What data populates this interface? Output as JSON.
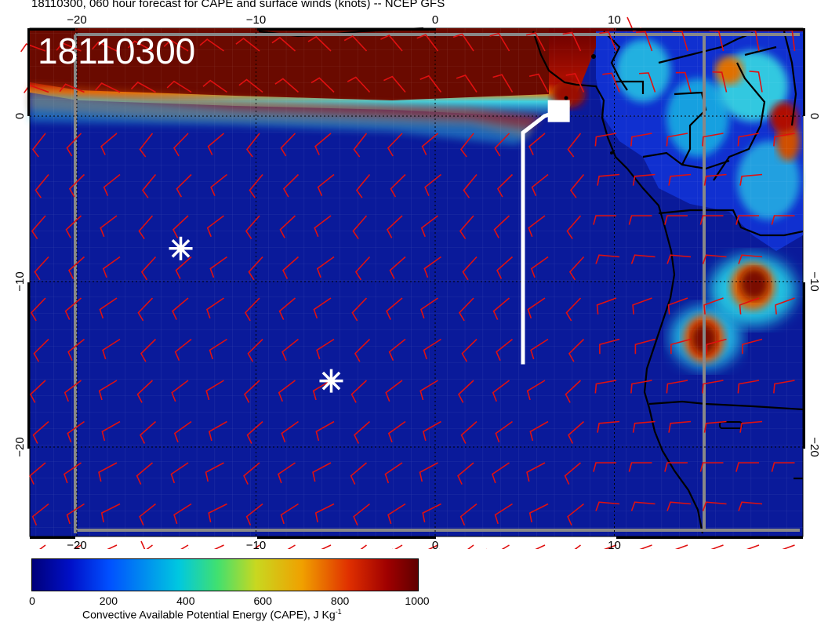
{
  "title": "18110300, 060 hour forecast for CAPE and surface winds (knots) -- NCEP GFS",
  "stamp": "18110300",
  "map": {
    "lon_range": [
      -22.5,
      20.5
    ],
    "lat_range": [
      -25.5,
      5
    ],
    "lon_ticks": [
      {
        "value": -20,
        "label": "−20"
      },
      {
        "value": -10,
        "label": "−10"
      },
      {
        "value": 0,
        "label": "0"
      },
      {
        "value": 10,
        "label": "10"
      }
    ],
    "lat_ticks": [
      {
        "value": 0,
        "label": "0"
      },
      {
        "value": -10,
        "label": "−10"
      },
      {
        "value": -20,
        "label": "−20"
      }
    ],
    "wind_barb_color": "#e01010",
    "ocean_color": "#0a1a9a",
    "high_cape_color": "#7a0a00",
    "land_outline_color": "#000000"
  },
  "markers": [
    {
      "name": "asterisk",
      "lon": -14.2,
      "lat": -8
    },
    {
      "name": "asterisk",
      "lon": -5.8,
      "lat": -16
    }
  ],
  "track": {
    "color": "#ffffff",
    "points": [
      [
        4.9,
        -15
      ],
      [
        4.9,
        -1
      ],
      [
        6.1,
        0
      ],
      [
        6.9,
        0.3
      ]
    ],
    "end_square": [
      6.9,
      0.3
    ]
  },
  "colorbar": {
    "ticks": [
      "0",
      "200",
      "400",
      "600",
      "800",
      "1000"
    ],
    "label": "Convective Available Potential Energy (CAPE), J Kg",
    "label_superscript": "-1"
  }
}
